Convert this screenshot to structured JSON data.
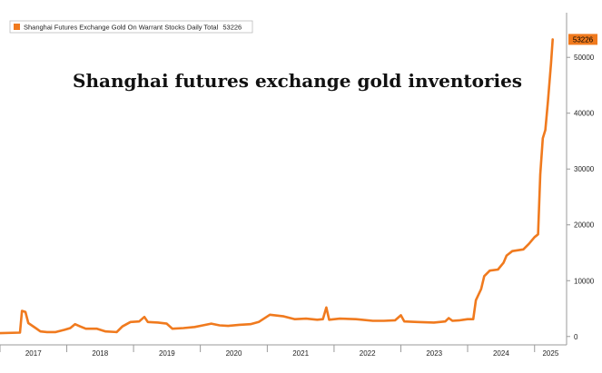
{
  "colors": {
    "series": "#f07a1e",
    "axis": "#9a9a9a",
    "background": "#ffffff"
  },
  "overlay_title": "Shanghai futures exchange gold inventories",
  "chart_data": {
    "type": "line",
    "series": [
      {
        "name": "Shanghai Futures Exchange Gold On Warrant Stocks Daily Total",
        "last_value_label": "53226",
        "points": [
          [
            "2017-01-01",
            600
          ],
          [
            "2017-04-20",
            700
          ],
          [
            "2017-05-01",
            4600
          ],
          [
            "2017-05-20",
            4400
          ],
          [
            "2017-06-05",
            2400
          ],
          [
            "2017-07-15",
            1500
          ],
          [
            "2017-08-10",
            900
          ],
          [
            "2017-09-15",
            800
          ],
          [
            "2017-11-01",
            800
          ],
          [
            "2017-12-20",
            1200
          ],
          [
            "2018-01-20",
            1500
          ],
          [
            "2018-02-15",
            2200
          ],
          [
            "2018-03-15",
            1800
          ],
          [
            "2018-04-15",
            1400
          ],
          [
            "2018-06-15",
            1400
          ],
          [
            "2018-08-01",
            900
          ],
          [
            "2018-10-01",
            800
          ],
          [
            "2018-11-01",
            1800
          ],
          [
            "2018-12-15",
            2600
          ],
          [
            "2019-02-01",
            2700
          ],
          [
            "2019-03-01",
            3500
          ],
          [
            "2019-03-20",
            2600
          ],
          [
            "2019-05-15",
            2500
          ],
          [
            "2019-07-01",
            2300
          ],
          [
            "2019-08-01",
            1400
          ],
          [
            "2019-10-01",
            1500
          ],
          [
            "2019-12-01",
            1700
          ],
          [
            "2020-01-15",
            2000
          ],
          [
            "2020-03-01",
            2300
          ],
          [
            "2020-04-15",
            2000
          ],
          [
            "2020-06-01",
            1900
          ],
          [
            "2020-08-01",
            2100
          ],
          [
            "2020-10-01",
            2200
          ],
          [
            "2020-11-15",
            2600
          ],
          [
            "2021-01-15",
            3900
          ],
          [
            "2021-04-01",
            3600
          ],
          [
            "2021-06-01",
            3100
          ],
          [
            "2021-08-01",
            3200
          ],
          [
            "2021-10-01",
            3000
          ],
          [
            "2021-11-01",
            3100
          ],
          [
            "2021-11-20",
            5200
          ],
          [
            "2021-12-05",
            3000
          ],
          [
            "2022-02-01",
            3200
          ],
          [
            "2022-05-01",
            3100
          ],
          [
            "2022-08-01",
            2800
          ],
          [
            "2022-10-01",
            2800
          ],
          [
            "2022-12-01",
            2900
          ],
          [
            "2023-01-01",
            3800
          ],
          [
            "2023-01-20",
            2700
          ],
          [
            "2023-04-01",
            2600
          ],
          [
            "2023-07-01",
            2500
          ],
          [
            "2023-09-01",
            2700
          ],
          [
            "2023-09-20",
            3300
          ],
          [
            "2023-10-10",
            2800
          ],
          [
            "2023-11-20",
            2900
          ],
          [
            "2024-01-01",
            3100
          ],
          [
            "2024-02-01",
            3100
          ],
          [
            "2024-02-15",
            6500
          ],
          [
            "2024-03-15",
            8500
          ],
          [
            "2024-04-01",
            10800
          ],
          [
            "2024-05-01",
            11800
          ],
          [
            "2024-06-15",
            12000
          ],
          [
            "2024-07-15",
            13200
          ],
          [
            "2024-08-01",
            14500
          ],
          [
            "2024-09-01",
            15300
          ],
          [
            "2024-11-01",
            15600
          ],
          [
            "2024-12-01",
            16600
          ],
          [
            "2025-01-01",
            17800
          ],
          [
            "2025-01-20",
            18300
          ],
          [
            "2025-02-01",
            29000
          ],
          [
            "2025-02-15",
            35500
          ],
          [
            "2025-03-01",
            37000
          ],
          [
            "2025-03-15",
            42000
          ],
          [
            "2025-04-01",
            49000
          ],
          [
            "2025-04-10",
            53226
          ]
        ]
      }
    ],
    "x_ticks": [
      "2017",
      "2018",
      "2019",
      "2020",
      "2021",
      "2022",
      "2023",
      "2024",
      "2025"
    ],
    "y_ticks": [
      "0",
      "10000",
      "20000",
      "30000",
      "40000",
      "50000"
    ],
    "xlim": [
      "2017-01-01",
      "2025-06-25"
    ],
    "ylim": [
      -1500,
      58000
    ],
    "y_axis_side": "right",
    "grid": false,
    "legend_position": "top-left"
  }
}
